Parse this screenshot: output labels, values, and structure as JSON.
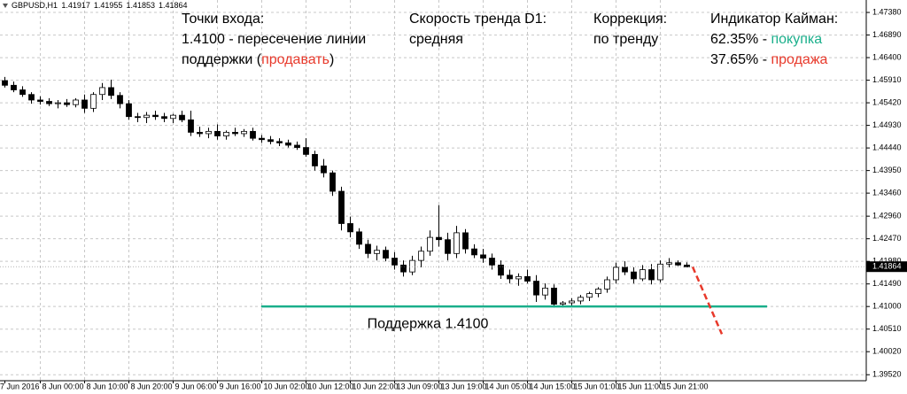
{
  "chart_data": {
    "type": "candlestick",
    "header": {
      "symbol": "GBPUSD,H1",
      "ohlc": [
        1.41917,
        1.41955,
        1.41853,
        1.41864
      ]
    },
    "categories": [
      "7 Jun 2016",
      null,
      null,
      null,
      "8 Jun 00:00",
      null,
      null,
      null,
      null,
      "8 Jun 10:00",
      null,
      null,
      null,
      null,
      "8 Jun 20:00",
      null,
      null,
      null,
      null,
      "9 Jun 06:00",
      null,
      null,
      null,
      null,
      "9 Jun 16:00",
      null,
      null,
      null,
      null,
      "10 Jun 02:00",
      null,
      null,
      null,
      null,
      "10 Jun 12:00",
      null,
      null,
      null,
      null,
      "10 Jun 22:00",
      null,
      null,
      null,
      null,
      "13 Jun 09:00",
      null,
      null,
      null,
      null,
      "13 Jun 19:00",
      null,
      null,
      null,
      null,
      "14 Jun 05:00",
      null,
      null,
      null,
      null,
      "14 Jun 15:00",
      null,
      null,
      null,
      null,
      "15 Jun 01:00",
      null,
      null,
      null,
      null,
      "15 Jun 11:00",
      null,
      null,
      null,
      null,
      "15 Jun 21:00",
      null,
      null,
      null
    ],
    "open": [
      1.459,
      1.458,
      1.457,
      1.456,
      1.4548,
      1.4545,
      1.454,
      1.4542,
      1.4538,
      1.4548,
      1.453,
      1.456,
      1.4575,
      1.4558,
      1.454,
      1.4512,
      1.451,
      1.4515,
      1.4512,
      1.4508,
      1.4515,
      1.4505,
      1.4478,
      1.4475,
      1.448,
      1.447,
      1.4478,
      1.4475,
      1.448,
      1.4465,
      1.4462,
      1.4458,
      1.4455,
      1.445,
      1.4445,
      1.443,
      1.4405,
      1.439,
      1.435,
      1.428,
      1.4262,
      1.4235,
      1.4215,
      1.4222,
      1.4205,
      1.419,
      1.4175,
      1.42,
      1.422,
      1.425,
      1.4245,
      1.4215,
      1.426,
      1.4225,
      1.4212,
      1.4205,
      1.419,
      1.4168,
      1.416,
      1.4165,
      1.4155,
      1.4125,
      1.414,
      1.4105,
      1.4108,
      1.4112,
      1.412,
      1.4128,
      1.4138,
      1.4158,
      1.4185,
      1.4175,
      1.416,
      1.418,
      1.4158,
      1.4192,
      1.4195,
      1.419
    ],
    "high": [
      1.4598,
      1.4588,
      1.4578,
      1.4565,
      1.4556,
      1.4552,
      1.4548,
      1.455,
      1.4552,
      1.456,
      1.4565,
      1.4585,
      1.4592,
      1.4565,
      1.4548,
      1.452,
      1.4522,
      1.4525,
      1.452,
      1.4518,
      1.4525,
      1.4525,
      1.449,
      1.4488,
      1.4495,
      1.4482,
      1.4488,
      1.4485,
      1.4488,
      1.4472,
      1.447,
      1.4465,
      1.4462,
      1.4458,
      1.4465,
      1.4438,
      1.442,
      1.4395,
      1.436,
      1.4295,
      1.427,
      1.4245,
      1.4232,
      1.423,
      1.4218,
      1.42,
      1.421,
      1.423,
      1.4265,
      1.432,
      1.426,
      1.4275,
      1.4268,
      1.4235,
      1.4225,
      1.4215,
      1.42,
      1.418,
      1.4172,
      1.418,
      1.4168,
      1.415,
      1.4148,
      1.4112,
      1.4118,
      1.4125,
      1.4132,
      1.4142,
      1.4165,
      1.4195,
      1.4198,
      1.4185,
      1.419,
      1.4192,
      1.42,
      1.4205,
      1.42,
      1.4196
    ],
    "low": [
      1.4575,
      1.4565,
      1.4555,
      1.454,
      1.4538,
      1.4535,
      1.453,
      1.4533,
      1.4532,
      1.452,
      1.4522,
      1.4548,
      1.455,
      1.453,
      1.4505,
      1.45,
      1.4498,
      1.4505,
      1.45,
      1.4498,
      1.45,
      1.447,
      1.4468,
      1.4465,
      1.4462,
      1.4462,
      1.447,
      1.4468,
      1.446,
      1.4455,
      1.4452,
      1.4448,
      1.4445,
      1.444,
      1.4425,
      1.4395,
      1.438,
      1.434,
      1.4265,
      1.425,
      1.4225,
      1.4205,
      1.42,
      1.4198,
      1.418,
      1.4165,
      1.4168,
      1.4185,
      1.421,
      1.423,
      1.42,
      1.4205,
      1.4215,
      1.4205,
      1.4195,
      1.418,
      1.416,
      1.415,
      1.4145,
      1.415,
      1.411,
      1.4115,
      1.4098,
      1.4098,
      1.4102,
      1.4105,
      1.4112,
      1.412,
      1.413,
      1.415,
      1.4168,
      1.415,
      1.4155,
      1.4148,
      1.4152,
      1.4185,
      1.4188,
      1.4185
    ],
    "close": [
      1.458,
      1.457,
      1.456,
      1.4548,
      1.4545,
      1.454,
      1.4542,
      1.4538,
      1.4548,
      1.453,
      1.456,
      1.4575,
      1.4558,
      1.454,
      1.4512,
      1.451,
      1.4515,
      1.4512,
      1.4508,
      1.4515,
      1.4505,
      1.4478,
      1.4475,
      1.448,
      1.447,
      1.4478,
      1.4475,
      1.448,
      1.4465,
      1.4462,
      1.4458,
      1.4455,
      1.445,
      1.4445,
      1.443,
      1.4405,
      1.439,
      1.435,
      1.428,
      1.4262,
      1.4235,
      1.4215,
      1.4222,
      1.4205,
      1.419,
      1.4175,
      1.42,
      1.422,
      1.425,
      1.4245,
      1.4215,
      1.426,
      1.4225,
      1.4212,
      1.4205,
      1.419,
      1.4168,
      1.416,
      1.4165,
      1.4155,
      1.4125,
      1.414,
      1.4105,
      1.4108,
      1.4112,
      1.412,
      1.4128,
      1.4138,
      1.4158,
      1.4185,
      1.4175,
      1.416,
      1.418,
      1.4158,
      1.4192,
      1.4195,
      1.419,
      1.4186
    ],
    "up_color": "#ffffff",
    "down_color": "#000000",
    "ylim": [
      1.3939,
      1.4765
    ],
    "yticks": [
      {
        "value": 1.4738,
        "label": "1.47380"
      },
      {
        "value": 1.4689,
        "label": "1.46890"
      },
      {
        "value": 1.464,
        "label": "1.46400"
      },
      {
        "value": 1.4591,
        "label": "1.45910"
      },
      {
        "value": 1.4542,
        "label": "1.45420"
      },
      {
        "value": 1.4493,
        "label": "1.44930"
      },
      {
        "value": 1.4444,
        "label": "1.44440"
      },
      {
        "value": 1.4395,
        "label": "1.43950"
      },
      {
        "value": 1.4346,
        "label": "1.43460"
      },
      {
        "value": 1.4296,
        "label": "1.42960"
      },
      {
        "value": 1.4247,
        "label": "1.42470"
      },
      {
        "value": 1.4198,
        "label": "1.41980"
      },
      {
        "value": 1.4149,
        "label": "1.41490"
      },
      {
        "value": 1.41,
        "label": "1.41000"
      },
      {
        "value": 1.4051,
        "label": "1.40510"
      },
      {
        "value": 1.4002,
        "label": "1.40020"
      },
      {
        "value": 1.3952,
        "label": "1.39520"
      }
    ],
    "grid": true,
    "current_price": 1.41864,
    "support": {
      "value": 1.41,
      "label": "Поддержка 1.4100",
      "color": "#1aaf8b"
    },
    "forecast": {
      "values": [
        1.4186,
        1.404
      ],
      "color": "#e8392b"
    },
    "annotations": [
      {
        "lines": [
          [
            {
              "text": "Точки входа:"
            }
          ],
          [
            {
              "text": "1.4100 - пересечение линии"
            }
          ],
          [
            {
              "text": "поддержки ("
            },
            {
              "text": "продавать",
              "color": "#e8392b"
            },
            {
              "text": ")"
            }
          ]
        ]
      },
      {
        "lines": [
          [
            {
              "text": "Скорость тренда D1:"
            }
          ],
          [
            {
              "text": "средняя"
            }
          ]
        ]
      },
      {
        "lines": [
          [
            {
              "text": "Коррекция:"
            }
          ],
          [
            {
              "text": "по тренду"
            }
          ]
        ]
      },
      {
        "lines": [
          [
            {
              "text": "Индикатор Кайман:"
            }
          ],
          [
            {
              "text": "62.35% - "
            },
            {
              "text": "покупка",
              "color": "#1aaf8b"
            }
          ],
          [
            {
              "text": "37.65% - "
            },
            {
              "text": "продажа",
              "color": "#e8392b"
            }
          ]
        ]
      }
    ]
  }
}
